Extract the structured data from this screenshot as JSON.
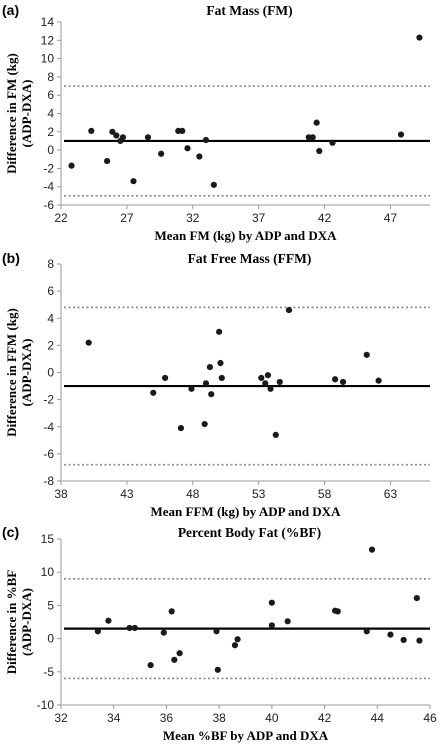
{
  "chart_data": [
    {
      "type": "scatter",
      "panel_label": "(a)",
      "title": "Fat Mass (FM)",
      "xlabel": "Mean FM (kg) by ADP and DXA",
      "ylabel_line1": "Difference in FM (kg)",
      "ylabel_line2": "(ADP-DXA)",
      "xlim": [
        22,
        50
      ],
      "ylim": [
        -6,
        14
      ],
      "xticks": [
        22,
        27,
        32,
        37,
        42,
        47
      ],
      "yticks": [
        -6,
        -4,
        -2,
        0,
        2,
        4,
        6,
        8,
        10,
        12,
        14
      ],
      "mean": 1.0,
      "limits": [
        7.0,
        -5.0
      ],
      "x": [
        22.8,
        24.3,
        25.5,
        25.9,
        26.2,
        26.5,
        26.7,
        27.5,
        28.6,
        29.6,
        30.9,
        31.2,
        31.6,
        32.5,
        33.0,
        33.6,
        40.8,
        41.1,
        41.4,
        41.6,
        42.6,
        47.8,
        49.2
      ],
      "y": [
        -1.7,
        2.1,
        -1.2,
        2.0,
        1.6,
        1.0,
        1.4,
        -3.4,
        1.4,
        -0.4,
        2.1,
        2.1,
        0.2,
        -0.7,
        1.1,
        -3.8,
        1.4,
        1.4,
        3.0,
        -0.1,
        0.8,
        1.7,
        12.3
      ]
    },
    {
      "type": "scatter",
      "panel_label": "(b)",
      "title": "Fat Free Mass (FFM)",
      "xlabel": "Mean FFM (kg) by ADP and DXA",
      "ylabel_line1": "Difference in FFM (kg)",
      "ylabel_line2": "(ADP-DXA)",
      "xlim": [
        38,
        66
      ],
      "ylim": [
        -8,
        8
      ],
      "xticks": [
        38,
        43,
        48,
        53,
        58,
        63
      ],
      "yticks": [
        -8,
        -6,
        -4,
        -2,
        0,
        2,
        4,
        6,
        8
      ],
      "mean": -1.0,
      "limits": [
        4.8,
        -6.8
      ],
      "x": [
        40.1,
        45.0,
        45.9,
        47.1,
        47.9,
        48.9,
        49.0,
        49.3,
        49.4,
        50.0,
        50.1,
        50.2,
        53.2,
        53.5,
        53.7,
        53.9,
        54.3,
        54.6,
        55.3,
        58.8,
        59.4,
        61.2,
        62.1
      ],
      "y": [
        2.2,
        -1.5,
        -0.4,
        -4.1,
        -1.2,
        -3.8,
        -0.8,
        0.4,
        -1.6,
        3.0,
        0.7,
        -0.4,
        -0.4,
        -0.8,
        -0.2,
        -1.2,
        -4.6,
        -0.7,
        4.6,
        -0.5,
        -0.7,
        1.3,
        -0.6
      ]
    },
    {
      "type": "scatter",
      "panel_label": "(c)",
      "title": "Percent Body Fat (%BF)",
      "xlabel": "Mean %BF by ADP and DXA",
      "ylabel_line1": "Difference in %BF",
      "ylabel_line2": "(ADP-DXA)",
      "xlim": [
        32,
        46
      ],
      "ylim": [
        -10,
        15
      ],
      "xticks": [
        32,
        34,
        36,
        38,
        40,
        42,
        44,
        46
      ],
      "yticks": [
        -10,
        -5,
        0,
        5,
        10,
        15
      ],
      "mean": 1.5,
      "limits": [
        9.0,
        -6.0
      ],
      "x": [
        33.4,
        33.8,
        34.6,
        34.8,
        35.4,
        35.9,
        36.2,
        36.3,
        36.5,
        37.9,
        37.95,
        38.6,
        38.7,
        40.0,
        40.0,
        40.6,
        42.4,
        42.5,
        43.6,
        43.8,
        44.5,
        45.0,
        45.5,
        45.6
      ],
      "y": [
        1.1,
        2.7,
        1.6,
        1.6,
        -4.0,
        0.9,
        4.1,
        -3.2,
        -2.2,
        1.1,
        -4.7,
        -1.0,
        -0.1,
        5.4,
        2.0,
        2.6,
        4.2,
        4.1,
        1.1,
        13.4,
        0.6,
        -0.2,
        6.1,
        -0.3
      ]
    }
  ]
}
